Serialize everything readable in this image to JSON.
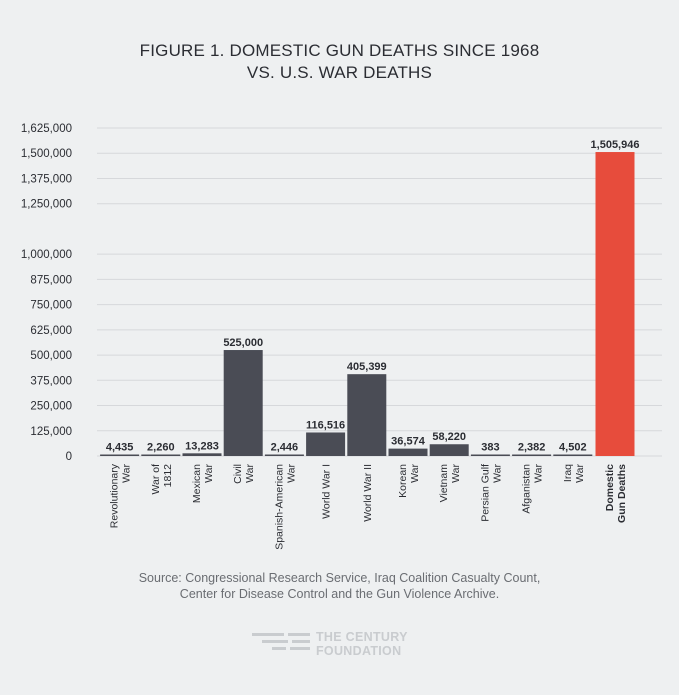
{
  "title": {
    "line1": "FIGURE 1. DOMESTIC GUN DEATHS SINCE 1968",
    "line2": "VS. U.S. WAR DEATHS"
  },
  "source": {
    "line1": "Source: Congressional Research Service, Iraq Coalition Casualty Count,",
    "line2": "Center for Disease Control and the Gun Violence Archive."
  },
  "logo": {
    "line1": "THE CENTURY",
    "line2": "FOUNDATION"
  },
  "colors": {
    "war_bar": "#4a4c55",
    "highlight_bar": "#e74c3c",
    "grid": "#d6d8db",
    "text": "#2b2d33"
  },
  "chart_data": {
    "type": "bar",
    "categories": [
      [
        "Revolutionary",
        "War"
      ],
      [
        "War of",
        "1812"
      ],
      [
        "Mexican",
        "War"
      ],
      [
        "Civil",
        "War"
      ],
      [
        "Spanish-American",
        "War"
      ],
      [
        "World War I"
      ],
      [
        "World War II"
      ],
      [
        "Korean",
        "War"
      ],
      [
        "Vietnam",
        "War"
      ],
      [
        "Persian Gulf",
        "War"
      ],
      [
        "Afganistan",
        "War"
      ],
      [
        "Iraq",
        "War"
      ],
      [
        "Domestic",
        "Gun Deaths"
      ]
    ],
    "values": [
      4435,
      2260,
      13283,
      525000,
      2446,
      116516,
      405399,
      36574,
      58220,
      383,
      2382,
      4502,
      1505946
    ],
    "value_labels": [
      "4,435",
      "2,260",
      "13,283",
      "525,000",
      "2,446",
      "116,516",
      "405,399",
      "36,574",
      "58,220",
      "383",
      "2,382",
      "4,502",
      "1,505,946"
    ],
    "highlight_index": 12,
    "ylim": [
      0,
      1625000
    ],
    "yticks": [
      0,
      125000,
      250000,
      375000,
      500000,
      625000,
      750000,
      875000,
      1000000,
      1250000,
      1375000,
      1500000,
      1625000
    ],
    "ytick_labels": [
      "0",
      "125,000",
      "250,000",
      "375,000",
      "500,000",
      "625,000",
      "750,000",
      "875,000",
      "1,000,000",
      "1,250,000",
      "1,375,000",
      "1,500,000",
      "1,625,000"
    ],
    "grid": true,
    "legend": "none"
  }
}
